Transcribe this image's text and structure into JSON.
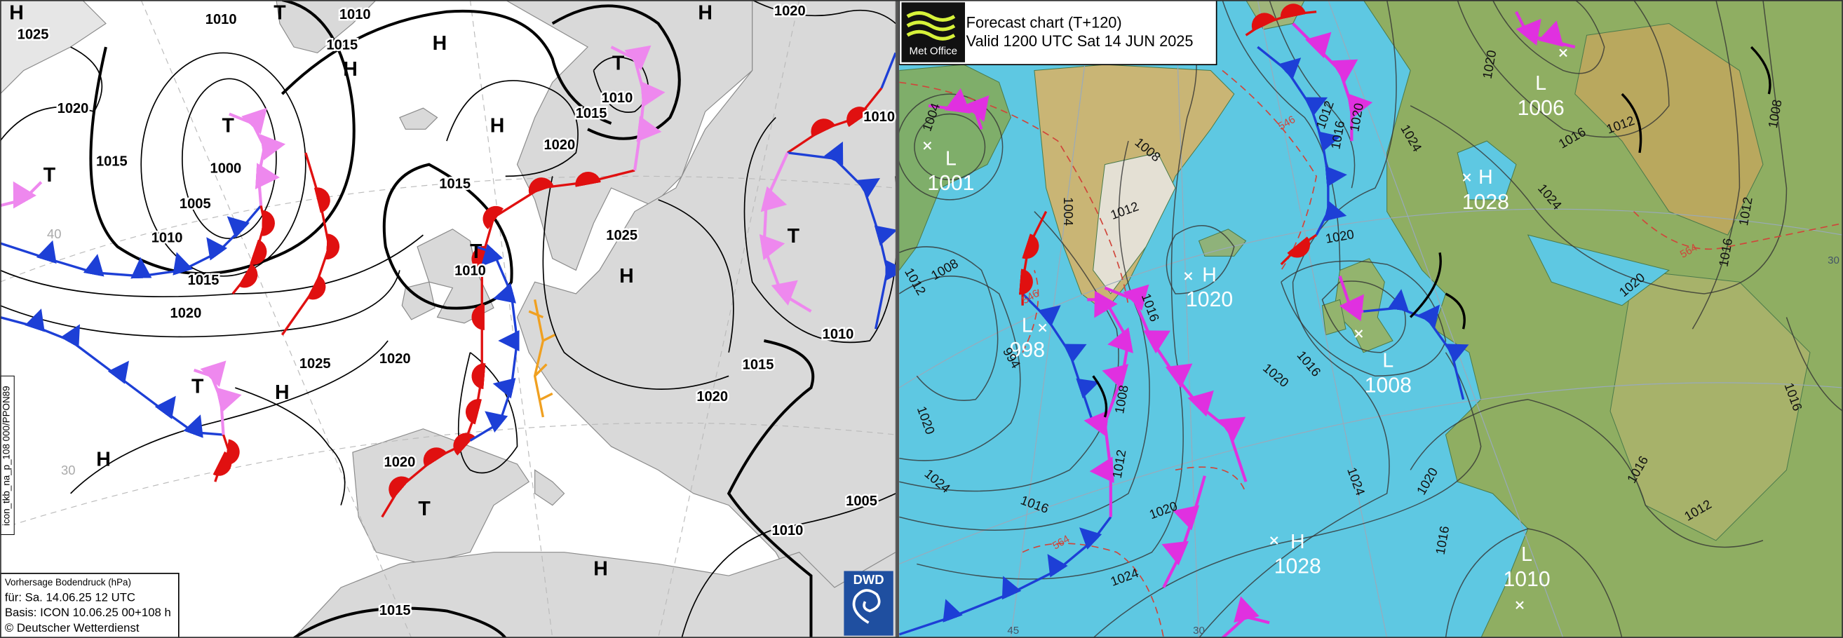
{
  "left_map": {
    "pressure_systems": [
      "H",
      "T",
      "H",
      "H",
      "H",
      "T",
      "T",
      "H",
      "T",
      "T",
      "T",
      "H",
      "T",
      "H",
      "H",
      "T",
      "H"
    ],
    "isobar_labels": [
      "1025",
      "1010",
      "1010",
      "1020",
      "1015",
      "1020",
      "1010",
      "1015",
      "1010",
      "1020",
      "1015",
      "1000",
      "1015",
      "1005",
      "1010",
      "1025",
      "1015",
      "1010",
      "1020",
      "1025",
      "1020",
      "1015",
      "1010",
      "1020",
      "1020",
      "1005",
      "1010",
      "1015"
    ],
    "grid_labels": [
      "40",
      "30"
    ],
    "side_label": "icon_tkb_na_p_108 000/PPON89",
    "info_box": {
      "title": "Vorhersage Bodendruck (hPa)",
      "valid": "für:  Sa. 14.06.25  12 UTC",
      "basis": "Basis: ICON  10.06.25 00+108 h",
      "copyright": "© Deutscher Wetterdienst"
    },
    "logo": "DWD"
  },
  "right_map": {
    "logo": "Met Office",
    "title": "Forecast chart (T+120)",
    "valid": "Valid 1200 UTC Sat 14 JUN 2025",
    "centers": [
      {
        "symbol": "L",
        "pressure": "1001"
      },
      {
        "symbol": "L",
        "pressure": "998"
      },
      {
        "symbol": "H",
        "pressure": "1020"
      },
      {
        "symbol": "H",
        "pressure": "1028"
      },
      {
        "symbol": "L",
        "pressure": "1008"
      },
      {
        "symbol": "L",
        "pressure": "1006"
      },
      {
        "symbol": "H",
        "pressure": "1028"
      },
      {
        "symbol": "L",
        "pressure": "1010"
      }
    ],
    "isobar_labels": [
      "1004",
      "1008",
      "1012",
      "1008",
      "1012",
      "1004",
      "1016",
      "994",
      "1008",
      "1012",
      "1020",
      "1024",
      "1016",
      "1020",
      "1024",
      "1020",
      "1016",
      "1024",
      "1012",
      "1016",
      "1020",
      "1020",
      "1024",
      "1020",
      "1016",
      "1012",
      "1024",
      "1008",
      "1012",
      "1016",
      "1020",
      "1016",
      "1016",
      "1012",
      "1020",
      "1016"
    ],
    "thickness_labels": [
      "546",
      "564",
      "564",
      "546"
    ],
    "grid_labels": [
      "45",
      "30",
      "30"
    ]
  }
}
